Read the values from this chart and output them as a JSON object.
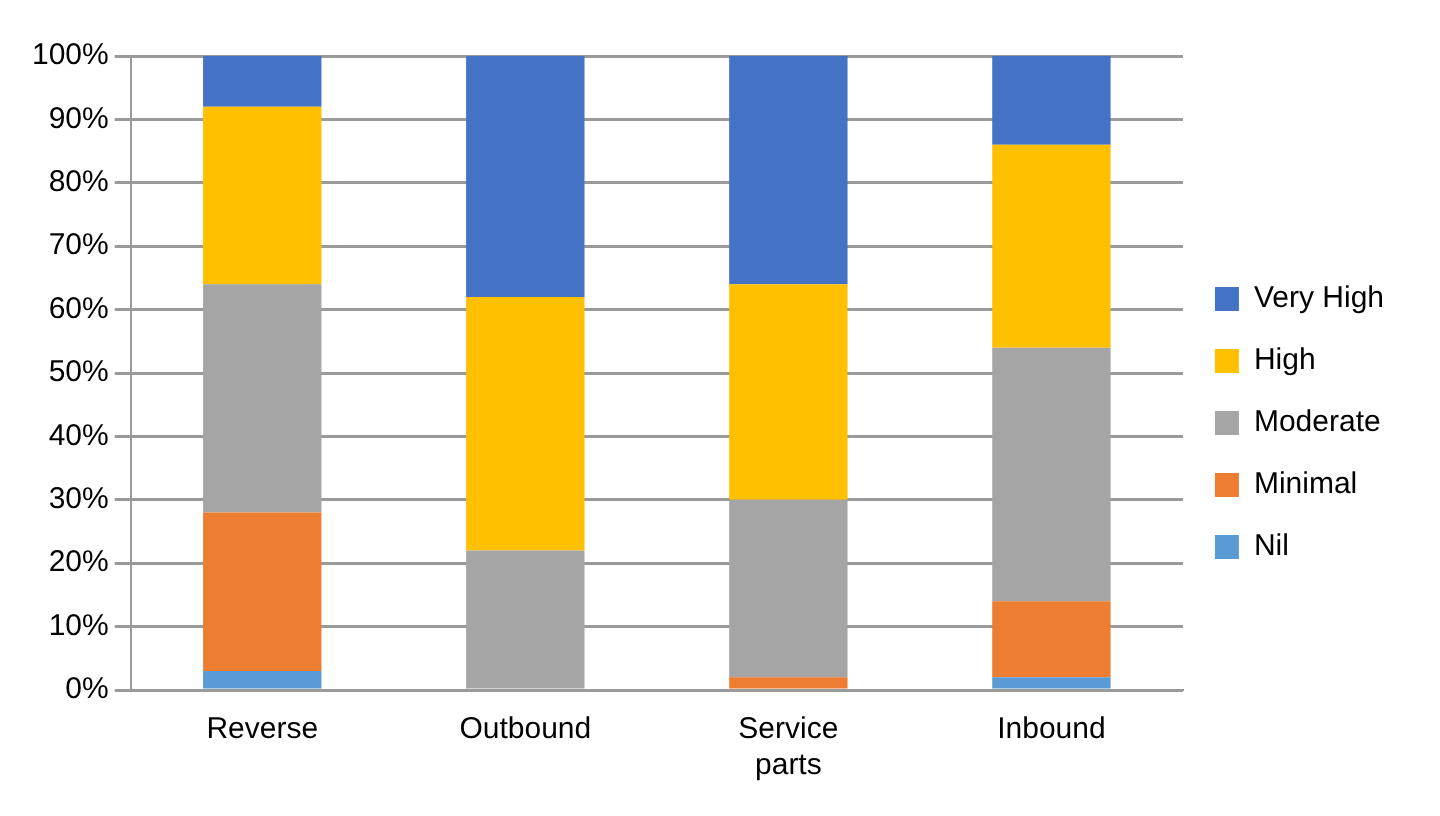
{
  "chart_data": {
    "type": "bar",
    "stacked": true,
    "categories": [
      "Reverse",
      "Outbound",
      "Service parts",
      "Inbound"
    ],
    "series": [
      {
        "name": "Nil",
        "color": "#5b9bd5",
        "values": [
          3,
          0,
          0,
          2
        ]
      },
      {
        "name": "Minimal",
        "color": "#ed7d31",
        "values": [
          25,
          0,
          2,
          12
        ]
      },
      {
        "name": "Moderate",
        "color": "#a5a5a5",
        "values": [
          36,
          22,
          28,
          40
        ]
      },
      {
        "name": "High",
        "color": "#ffc000",
        "values": [
          28,
          40,
          34,
          32
        ]
      },
      {
        "name": "Very High",
        "color": "#4472c4",
        "values": [
          8,
          38,
          36,
          14
        ]
      }
    ],
    "ylim": [
      0,
      100
    ],
    "yticks": [
      {
        "value": 0,
        "label": "0%"
      },
      {
        "value": 10,
        "label": "10%"
      },
      {
        "value": 20,
        "label": "20%"
      },
      {
        "value": 30,
        "label": "30%"
      },
      {
        "value": 40,
        "label": "40%"
      },
      {
        "value": 50,
        "label": "50%"
      },
      {
        "value": 60,
        "label": "60%"
      },
      {
        "value": 70,
        "label": "70%"
      },
      {
        "value": 80,
        "label": "80%"
      },
      {
        "value": 90,
        "label": "90%"
      },
      {
        "value": 100,
        "label": "100%"
      }
    ],
    "grid": "y",
    "legend": "right"
  }
}
